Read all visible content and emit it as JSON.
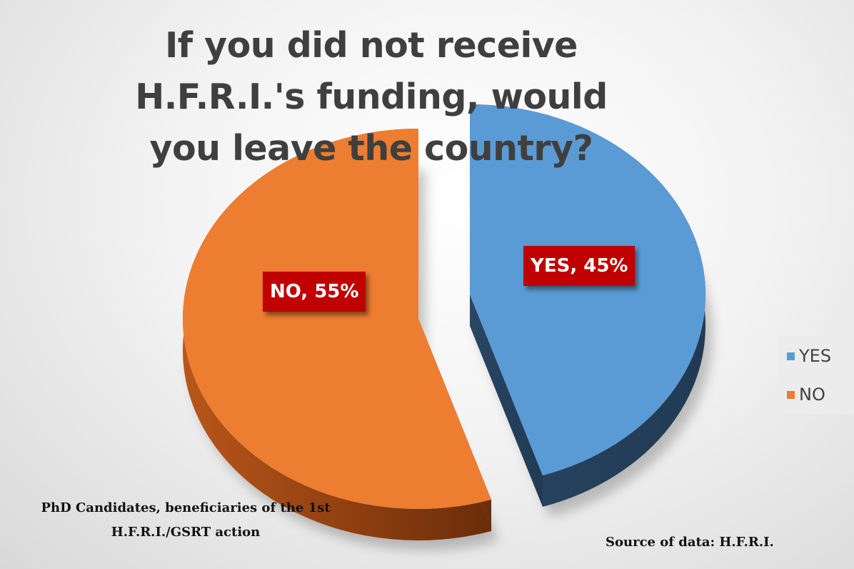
{
  "chart_data": {
    "type": "pie",
    "title": "If you did not receive H.F.R.I.'s funding, would you leave the country?",
    "categories": [
      "YES",
      "NO"
    ],
    "values": [
      45,
      55
    ],
    "data_labels": [
      "YES, 45%",
      "NO, 55%"
    ],
    "colors": [
      "#5b9bd5",
      "#ed7d31"
    ],
    "style": "3d-exploded",
    "legend_position": "right",
    "legend": [
      {
        "label": "YES",
        "color": "#5b9bd5"
      },
      {
        "label": "NO",
        "color": "#ed7d31"
      }
    ],
    "annotations": {
      "footnote_line1": "PhD Candidates, beneficiaries of the 1st",
      "footnote_line2": "H.F.R.I./GSRT action",
      "source": "Source of data: H.F.R.I."
    }
  },
  "label_color": "#c00000"
}
